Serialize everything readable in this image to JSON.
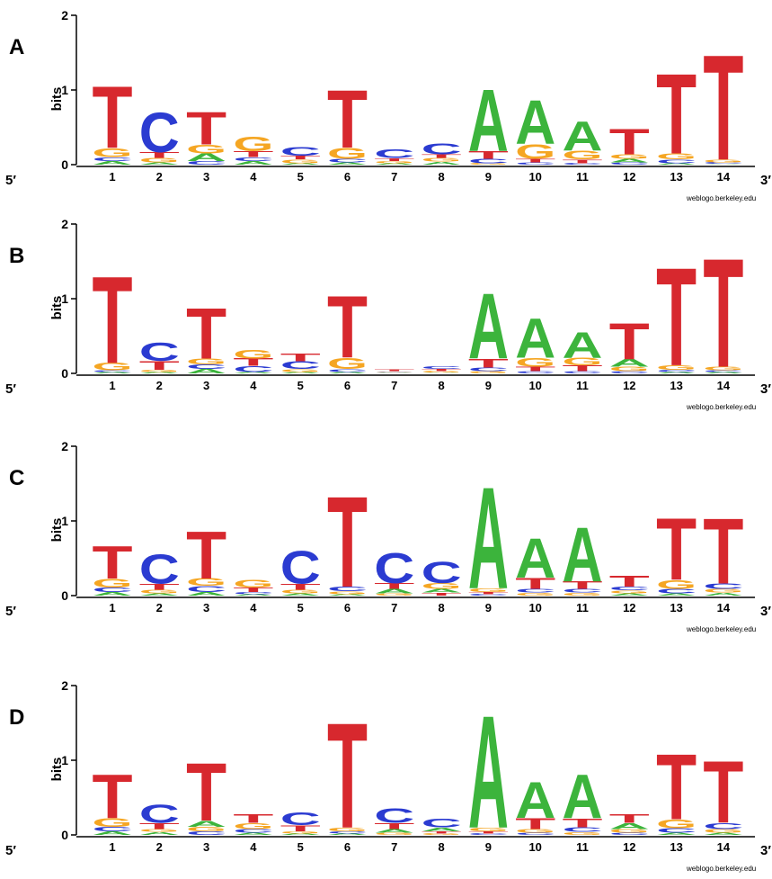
{
  "chart_data": [
    {
      "type": "logo",
      "panel_label": "A",
      "ylabel": "bits",
      "start_label": "5′",
      "end_label": "3′",
      "credit": "weblogo.berkeley.edu",
      "categories": [
        "1",
        "2",
        "3",
        "4",
        "5",
        "6",
        "7",
        "8",
        "9",
        "10",
        "11",
        "12",
        "13",
        "14"
      ],
      "ylim": [
        0,
        2
      ],
      "yticks": [
        0,
        1,
        2
      ],
      "series": [
        {
          "name": "A",
          "color": "#3cb43c",
          "values": [
            0.05,
            0.03,
            0.1,
            0.05,
            0.02,
            0.03,
            0.02,
            0.04,
            0.85,
            0.6,
            0.4,
            0.05,
            0.02,
            0.01
          ]
        },
        {
          "name": "C",
          "color": "#2b3bd1",
          "values": [
            0.05,
            0.55,
            0.05,
            0.05,
            0.12,
            0.05,
            0.12,
            0.15,
            0.06,
            0.03,
            0.02,
            0.03,
            0.05,
            0.02
          ]
        },
        {
          "name": "G",
          "color": "#f5a623",
          "values": [
            0.12,
            0.06,
            0.12,
            0.2,
            0.05,
            0.15,
            0.03,
            0.05,
            0.02,
            0.2,
            0.12,
            0.06,
            0.08,
            0.04
          ]
        },
        {
          "name": "T",
          "color": "#d7282e",
          "values": [
            0.85,
            0.08,
            0.45,
            0.08,
            0.05,
            0.8,
            0.04,
            0.05,
            0.1,
            0.05,
            0.05,
            0.35,
            1.1,
            1.45
          ]
        }
      ]
    },
    {
      "type": "logo",
      "panel_label": "B",
      "ylabel": "bits",
      "start_label": "5′",
      "end_label": "3′",
      "credit": "weblogo.berkeley.edu",
      "categories": [
        "1",
        "2",
        "3",
        "4",
        "5",
        "6",
        "7",
        "8",
        "9",
        "10",
        "11",
        "12",
        "13",
        "14"
      ],
      "ylim": [
        0,
        2
      ],
      "yticks": [
        0,
        1,
        2
      ],
      "series": [
        {
          "name": "A",
          "color": "#3cb43c",
          "values": [
            0.02,
            0.02,
            0.06,
            0.02,
            0.02,
            0.02,
            0.01,
            0.01,
            0.9,
            0.55,
            0.35,
            0.1,
            0.02,
            0.02
          ]
        },
        {
          "name": "C",
          "color": "#2b3bd1",
          "values": [
            0.02,
            0.25,
            0.06,
            0.08,
            0.1,
            0.04,
            0.01,
            0.04,
            0.05,
            0.03,
            0.03,
            0.03,
            0.03,
            0.02
          ]
        },
        {
          "name": "G",
          "color": "#f5a623",
          "values": [
            0.1,
            0.03,
            0.08,
            0.12,
            0.04,
            0.15,
            0.01,
            0.02,
            0.03,
            0.12,
            0.1,
            0.06,
            0.06,
            0.05
          ]
        },
        {
          "name": "T",
          "color": "#d7282e",
          "values": [
            1.2,
            0.12,
            0.7,
            0.1,
            0.1,
            0.85,
            0.02,
            0.03,
            0.12,
            0.06,
            0.08,
            0.5,
            1.35,
            1.5
          ]
        }
      ]
    },
    {
      "type": "logo",
      "panel_label": "C",
      "ylabel": "bits",
      "start_label": "5′",
      "end_label": "3′",
      "credit": "weblogo.berkeley.edu",
      "categories": [
        "1",
        "2",
        "3",
        "4",
        "5",
        "6",
        "7",
        "8",
        "9",
        "10",
        "11",
        "12",
        "13",
        "14"
      ],
      "ylim": [
        0,
        2
      ],
      "yticks": [
        0,
        1,
        2
      ],
      "series": [
        {
          "name": "A",
          "color": "#3cb43c",
          "values": [
            0.05,
            0.03,
            0.05,
            0.02,
            0.03,
            0.02,
            0.06,
            0.05,
            1.4,
            0.55,
            0.75,
            0.03,
            0.03,
            0.04
          ]
        },
        {
          "name": "C",
          "color": "#2b3bd1",
          "values": [
            0.06,
            0.4,
            0.08,
            0.03,
            0.45,
            0.06,
            0.42,
            0.3,
            0.02,
            0.05,
            0.05,
            0.05,
            0.06,
            0.07
          ]
        },
        {
          "name": "G",
          "color": "#f5a623",
          "values": [
            0.12,
            0.05,
            0.1,
            0.1,
            0.05,
            0.04,
            0.03,
            0.08,
            0.05,
            0.04,
            0.04,
            0.04,
            0.12,
            0.05
          ]
        },
        {
          "name": "T",
          "color": "#d7282e",
          "values": [
            0.45,
            0.08,
            0.65,
            0.06,
            0.08,
            1.25,
            0.08,
            0.04,
            0.03,
            0.15,
            0.1,
            0.15,
            0.85,
            0.9
          ]
        }
      ]
    },
    {
      "type": "logo",
      "panel_label": "D",
      "ylabel": "bits",
      "start_label": "5′",
      "end_label": "3′",
      "credit": "weblogo.berkeley.edu",
      "categories": [
        "1",
        "2",
        "3",
        "4",
        "5",
        "6",
        "7",
        "8",
        "9",
        "10",
        "11",
        "12",
        "13",
        "14"
      ],
      "ylim": [
        0,
        2
      ],
      "yticks": [
        0,
        1,
        2
      ],
      "series": [
        {
          "name": "A",
          "color": "#3cb43c",
          "values": [
            0.05,
            0.04,
            0.08,
            0.03,
            0.02,
            0.02,
            0.05,
            0.05,
            1.55,
            0.5,
            0.6,
            0.08,
            0.03,
            0.03
          ]
        },
        {
          "name": "C",
          "color": "#2b3bd1",
          "values": [
            0.06,
            0.25,
            0.05,
            0.05,
            0.18,
            0.03,
            0.2,
            0.12,
            0.02,
            0.03,
            0.06,
            0.03,
            0.06,
            0.08
          ]
        },
        {
          "name": "G",
          "color": "#f5a623",
          "values": [
            0.12,
            0.04,
            0.06,
            0.08,
            0.03,
            0.05,
            0.03,
            0.02,
            0.05,
            0.05,
            0.04,
            0.05,
            0.12,
            0.05
          ]
        },
        {
          "name": "T",
          "color": "#d7282e",
          "values": [
            0.6,
            0.08,
            0.8,
            0.12,
            0.08,
            1.45,
            0.08,
            0.03,
            0.03,
            0.15,
            0.12,
            0.12,
            0.9,
            0.85
          ]
        }
      ]
    }
  ]
}
